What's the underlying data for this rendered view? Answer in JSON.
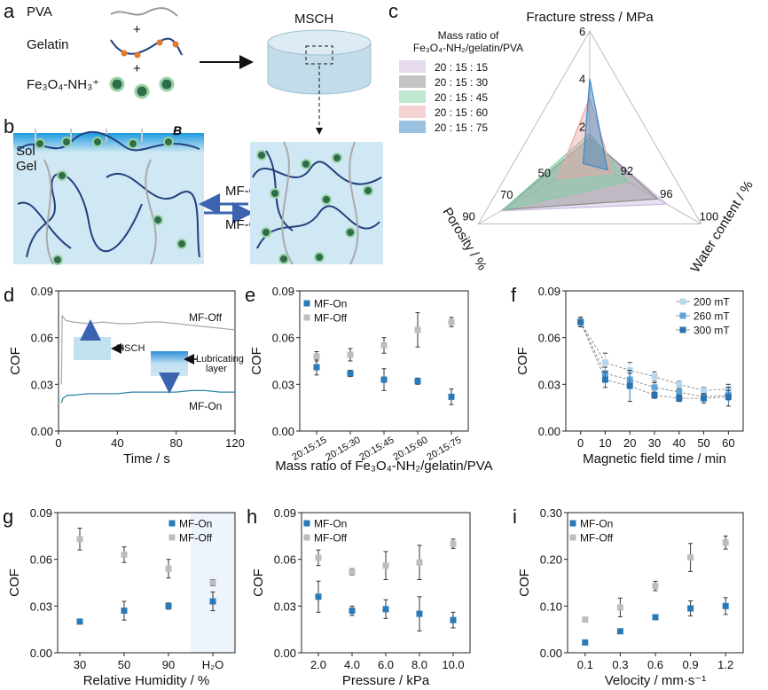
{
  "panel_a": {
    "letter": "a",
    "pva": "PVA",
    "gelatin": "Gelatin",
    "fe": "Fe₃O₄-NH₃⁺",
    "plus": "+",
    "msch": "MSCH"
  },
  "panel_b": {
    "letter": "b",
    "sol": "Sol",
    "gel": "Gel",
    "b_field": "B",
    "mf_on": "MF-On",
    "mf_off": "MF-Off"
  },
  "colors": {
    "mf_on": "#2a7ab8",
    "mf_off": "#bdbdbd",
    "gel_blue": "#cfe8f3",
    "chain": "#23407e"
  },
  "chart_data": [
    {
      "panel": "c",
      "type": "radar",
      "legend_title_1": "Mass ratio of",
      "legend_title_2": "Fe₃O₄-NH₂/gelatin/PVA",
      "axes": [
        {
          "label": "Fracture stress / MPa",
          "range": [
            0.6,
            6
          ],
          "ticks": [
            "2",
            "4",
            "6"
          ]
        },
        {
          "label": "Water content / %",
          "range": [
            88.7,
            100
          ],
          "ticks": [
            "92",
            "96",
            "100"
          ]
        },
        {
          "label": "Porosity / %",
          "range": [
            31,
            90
          ],
          "ticks": [
            "50",
            "70",
            "90"
          ]
        }
      ],
      "series": [
        {
          "name": "20  :  15  :  15",
          "color": "#cdb8e0",
          "values": [
            1.5,
            96.5,
            78
          ]
        },
        {
          "name": "20  :  15  :  30",
          "color": "#8c8c8c",
          "values": [
            1.5,
            95.6,
            77
          ]
        },
        {
          "name": "20  :  15  :  45",
          "color": "#7fd0a0",
          "values": [
            1.7,
            92.5,
            77
          ]
        },
        {
          "name": "20  :  15  :  60",
          "color": "#eba6a6",
          "values": [
            3.2,
            91.0,
            48
          ]
        },
        {
          "name": "20  :  15  :  75",
          "color": "#3a86c4",
          "values": [
            4.0,
            90.5,
            34.5
          ]
        }
      ]
    },
    {
      "panel": "d",
      "type": "line",
      "xlabel": "Time / s",
      "ylabel": "COF",
      "xlim": [
        0,
        120
      ],
      "ylim": [
        0,
        0.09
      ],
      "xtick_labels": [
        "0",
        "40",
        "80",
        "120"
      ],
      "ytick_labels": [
        "0.00",
        "0.03",
        "0.06",
        "0.09"
      ],
      "series": [
        {
          "name": "MF-Off",
          "color": "#a8a8a8",
          "x": [
            2,
            2.5,
            5,
            10,
            20,
            30,
            40,
            50,
            60,
            70,
            80,
            90,
            100,
            110,
            120
          ],
          "values": [
            0.03,
            0.074,
            0.071,
            0.07,
            0.069,
            0.07,
            0.069,
            0.069,
            0.07,
            0.07,
            0.069,
            0.068,
            0.067,
            0.066,
            0.065
          ]
        },
        {
          "name": "MF-On",
          "color": "#2f7fa8",
          "x": [
            2,
            3,
            6,
            10,
            20,
            30,
            40,
            50,
            60,
            70,
            80,
            90,
            100,
            110,
            120
          ],
          "values": [
            0.018,
            0.021,
            0.023,
            0.023,
            0.024,
            0.024,
            0.024,
            0.025,
            0.025,
            0.025,
            0.025,
            0.026,
            0.026,
            0.025,
            0.025
          ]
        }
      ],
      "insets": {
        "msch": "MSCH",
        "lub_1": "Lubricating",
        "lub_2": "layer"
      }
    },
    {
      "panel": "e",
      "type": "scatter",
      "xlabel": "Mass ratio of Fe₃O₄-NH₂/gelatin/PVA",
      "ylabel": "COF",
      "ylim": [
        0,
        0.09
      ],
      "categories": [
        "20:15:15",
        "20:15:30",
        "20:15:45",
        "20:15:60",
        "20:15:75"
      ],
      "ytick_labels": [
        "0.00",
        "0.03",
        "0.06",
        "0.09"
      ],
      "series": [
        {
          "name": "MF-On",
          "color": "#2a7ab8",
          "values": [
            0.041,
            0.037,
            0.033,
            0.032,
            0.022
          ],
          "errors": [
            0.005,
            0.002,
            0.007,
            0.002,
            0.005
          ]
        },
        {
          "name": "MF-Off",
          "color": "#bdbdbd",
          "values": [
            0.048,
            0.049,
            0.055,
            0.065,
            0.07
          ],
          "errors": [
            0.003,
            0.004,
            0.005,
            0.011,
            0.003
          ]
        }
      ]
    },
    {
      "panel": "f",
      "type": "line",
      "xlabel": "Magnetic field time / min",
      "ylabel": "COF",
      "xlim": [
        -6,
        66
      ],
      "ylim": [
        0,
        0.09
      ],
      "xtick_labels": [
        "0",
        "10",
        "20",
        "30",
        "40",
        "50",
        "60"
      ],
      "ytick_labels": [
        "0.00",
        "0.03",
        "0.06",
        "0.09"
      ],
      "series": [
        {
          "name": "200 mT",
          "color": "#b7d7ef",
          "x": [
            0,
            10,
            20,
            30,
            40,
            50,
            60
          ],
          "values": [
            0.07,
            0.044,
            0.039,
            0.035,
            0.03,
            0.026,
            0.027
          ],
          "errors": [
            0.003,
            0.006,
            0.005,
            0.003,
            0.002,
            0.002,
            0.003
          ]
        },
        {
          "name": "260 mT",
          "color": "#5fa3d6",
          "x": [
            0,
            10,
            20,
            30,
            40,
            50,
            60
          ],
          "values": [
            0.07,
            0.037,
            0.033,
            0.028,
            0.025,
            0.022,
            0.023
          ],
          "errors": [
            0.003,
            0.004,
            0.004,
            0.003,
            0.002,
            0.002,
            0.003
          ]
        },
        {
          "name": "300 mT",
          "color": "#2a72b0",
          "x": [
            0,
            10,
            20,
            30,
            40,
            50,
            60
          ],
          "values": [
            0.07,
            0.033,
            0.029,
            0.023,
            0.021,
            0.021,
            0.022
          ],
          "errors": [
            0.003,
            0.005,
            0.01,
            0.002,
            0.002,
            0.003,
            0.006
          ]
        }
      ]
    },
    {
      "panel": "g",
      "type": "scatter",
      "xlabel": "Relative Humidity / %",
      "ylabel": "COF",
      "ylim": [
        0,
        0.09
      ],
      "categories": [
        "30",
        "50",
        "90",
        "H₂O"
      ],
      "ytick_labels": [
        "0.00",
        "0.03",
        "0.06",
        "0.09"
      ],
      "series": [
        {
          "name": "MF-On",
          "color": "#2a7ab8",
          "values": [
            0.02,
            0.027,
            0.03,
            0.033
          ],
          "errors": [
            0.001,
            0.006,
            0.002,
            0.006
          ]
        },
        {
          "name": "MF-Off",
          "color": "#bdbdbd",
          "values": [
            0.073,
            0.063,
            0.054,
            0.045
          ],
          "errors": [
            0.007,
            0.005,
            0.006,
            0.002
          ]
        }
      ]
    },
    {
      "panel": "h",
      "type": "scatter",
      "xlabel": "Pressure / kPa",
      "ylabel": "COF",
      "ylim": [
        0,
        0.09
      ],
      "categories": [
        "2.0",
        "4.0",
        "6.0",
        "8.0",
        "10.0"
      ],
      "ytick_labels": [
        "0.00",
        "0.03",
        "0.06",
        "0.09"
      ],
      "series": [
        {
          "name": "MF-On",
          "color": "#2a7ab8",
          "values": [
            0.036,
            0.027,
            0.028,
            0.025,
            0.021
          ],
          "errors": [
            0.01,
            0.003,
            0.006,
            0.011,
            0.005
          ]
        },
        {
          "name": "MF-Off",
          "color": "#bdbdbd",
          "values": [
            0.061,
            0.052,
            0.056,
            0.058,
            0.07
          ],
          "errors": [
            0.005,
            0.002,
            0.009,
            0.011,
            0.003
          ]
        }
      ]
    },
    {
      "panel": "i",
      "type": "scatter",
      "xlabel": "Velocity / mm·s⁻¹",
      "ylabel": "COF",
      "ylim": [
        0,
        0.3
      ],
      "categories": [
        "0.1",
        "0.3",
        "0.6",
        "0.9",
        "1.2"
      ],
      "ytick_labels": [
        "0.00",
        "0.10",
        "0.20",
        "0.30"
      ],
      "series": [
        {
          "name": "MF-On",
          "color": "#2a7ab8",
          "values": [
            0.022,
            0.046,
            0.076,
            0.095,
            0.1
          ],
          "errors": [
            0.003,
            0.004,
            0.004,
            0.016,
            0.018
          ]
        },
        {
          "name": "MF-Off",
          "color": "#bdbdbd",
          "values": [
            0.071,
            0.097,
            0.143,
            0.204,
            0.236
          ],
          "errors": [
            0.004,
            0.02,
            0.01,
            0.03,
            0.014
          ]
        }
      ]
    }
  ]
}
